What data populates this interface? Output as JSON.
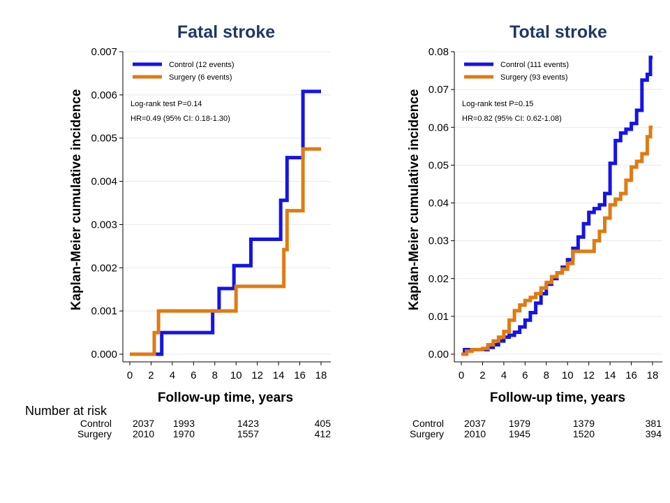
{
  "risk_table_title": "Number at risk",
  "colors": {
    "control": "#1414e6",
    "surgery": "#e07b10",
    "title": "#1f3864"
  },
  "chart_data": [
    {
      "type": "line",
      "step": true,
      "title": "Fatal stroke",
      "xlabel": "Follow-up time, years",
      "ylabel": "Kaplan-Meier cumulative incidence",
      "xlim": [
        0,
        18
      ],
      "ylim": [
        0,
        0.007
      ],
      "x_ticks": [
        0,
        2,
        4,
        6,
        8,
        10,
        12,
        14,
        16,
        18
      ],
      "y_ticks": [
        "0.000",
        "0.001",
        "0.002",
        "0.003",
        "0.004",
        "0.005",
        "0.006",
        "0.007"
      ],
      "grid": true,
      "legend_position": "top-left",
      "annotations": [
        "Log-rank test P=0.14",
        "HR=0.49 (95% CI: 0.18-1.30)"
      ],
      "series": [
        {
          "name": "Control (12 events)",
          "color": "#1414e6",
          "x": [
            0,
            3.0,
            3.0,
            7.8,
            7.8,
            8.4,
            8.4,
            9.8,
            9.8,
            11.4,
            11.4,
            14.2,
            14.2,
            14.8,
            14.8,
            16.3,
            16.3,
            18
          ],
          "y": [
            0,
            0,
            0.0005,
            0.0005,
            0.001,
            0.001,
            0.00152,
            0.00152,
            0.00205,
            0.00205,
            0.00266,
            0.00266,
            0.00356,
            0.00356,
            0.00455,
            0.00455,
            0.00608,
            0.00608
          ]
        },
        {
          "name": "Surgery (6 events)",
          "color": "#e07b10",
          "x": [
            0,
            2.3,
            2.3,
            2.7,
            2.7,
            10.0,
            10.0,
            14.5,
            14.5,
            14.8,
            14.8,
            16.3,
            16.3,
            18
          ],
          "y": [
            0,
            0,
            0.0005,
            0.0005,
            0.001,
            0.001,
            0.00157,
            0.00157,
            0.00242,
            0.00242,
            0.00332,
            0.00332,
            0.00475,
            0.00475
          ]
        }
      ],
      "risk_table": {
        "times": [
          0,
          6,
          12,
          18
        ],
        "rows": [
          {
            "label": "Control",
            "values": [
              "2037",
              "1993",
              "1423",
              "405"
            ]
          },
          {
            "label": "Surgery",
            "values": [
              "2010",
              "1970",
              "1557",
              "412"
            ]
          }
        ]
      }
    },
    {
      "type": "line",
      "step": true,
      "title": "Total stroke",
      "xlabel": "Follow-up time, years",
      "ylabel": "Kaplan-Meier cumulative incidence",
      "xlim": [
        0,
        18
      ],
      "ylim": [
        0,
        0.08
      ],
      "x_ticks": [
        0,
        2,
        4,
        6,
        8,
        10,
        12,
        14,
        16,
        18
      ],
      "y_ticks": [
        "0.00",
        "0.01",
        "0.02",
        "0.03",
        "0.04",
        "0.05",
        "0.06",
        "0.07",
        "0.08"
      ],
      "grid": true,
      "legend_position": "top-left",
      "annotations": [
        "Log-rank test P=0.15",
        "HR=0.82 (95% CI: 0.62-1.08)"
      ],
      "series": [
        {
          "name": "Control (111 events)",
          "color": "#1414e6",
          "x": [
            0,
            0.3,
            1,
            2,
            2.5,
            3,
            3.5,
            4,
            4.5,
            5,
            5.5,
            6,
            6.5,
            7,
            7.5,
            8,
            8.5,
            9,
            9.5,
            10,
            10.5,
            11,
            11.5,
            12,
            12.5,
            13,
            13.5,
            14,
            14.5,
            15,
            15.5,
            16,
            16.5,
            17,
            17.5,
            17.8,
            18
          ],
          "y": [
            0,
            0.0012,
            0.0012,
            0.0012,
            0.0018,
            0.0025,
            0.0035,
            0.0045,
            0.005,
            0.0058,
            0.0072,
            0.009,
            0.011,
            0.0135,
            0.016,
            0.0185,
            0.02,
            0.0215,
            0.023,
            0.025,
            0.028,
            0.031,
            0.0345,
            0.0375,
            0.0385,
            0.0395,
            0.0425,
            0.0505,
            0.0565,
            0.0585,
            0.0595,
            0.061,
            0.0645,
            0.0725,
            0.074,
            0.0785,
            0.0785
          ]
        },
        {
          "name": "Surgery (93 events)",
          "color": "#e07b10",
          "x": [
            0,
            0.5,
            1,
            2,
            2.5,
            3,
            3.5,
            4,
            4.5,
            5,
            5.5,
            6,
            6.5,
            7,
            7.5,
            8,
            8.5,
            9,
            9.5,
            10,
            10.5,
            11,
            11.5,
            12,
            12.5,
            13,
            13.5,
            14,
            14.5,
            15,
            15.5,
            16,
            16.5,
            17,
            17.5,
            17.8,
            18
          ],
          "y": [
            0,
            0.0008,
            0.0012,
            0.0015,
            0.0025,
            0.0035,
            0.0045,
            0.006,
            0.009,
            0.0115,
            0.013,
            0.0142,
            0.015,
            0.016,
            0.0175,
            0.019,
            0.0205,
            0.0215,
            0.0225,
            0.024,
            0.0272,
            0.0272,
            0.0272,
            0.0272,
            0.03,
            0.0325,
            0.036,
            0.0395,
            0.041,
            0.0425,
            0.046,
            0.0495,
            0.051,
            0.053,
            0.0575,
            0.06,
            0.06
          ]
        }
      ],
      "risk_table": {
        "times": [
          0,
          6,
          12,
          18
        ],
        "rows": [
          {
            "label": "Control",
            "values": [
              "2037",
              "1979",
              "1379",
              "381"
            ]
          },
          {
            "label": "Surgery",
            "values": [
              "2010",
              "1945",
              "1520",
              "394"
            ]
          }
        ]
      }
    }
  ]
}
